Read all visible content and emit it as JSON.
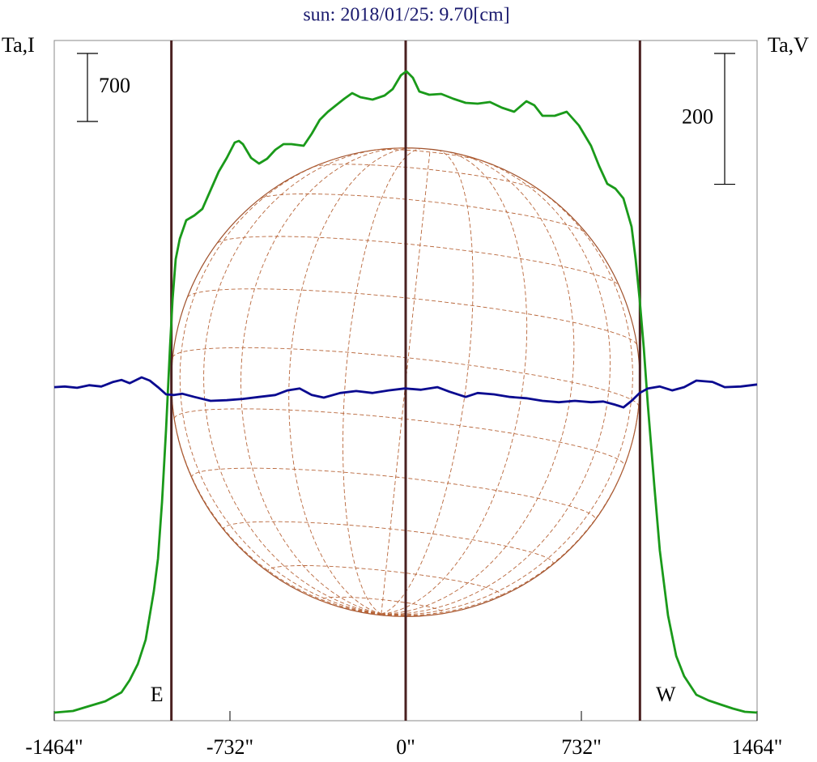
{
  "chart_data": {
    "type": "line",
    "title": "sun: 2018/01/25: 9.70[cm]",
    "y_label": "Ta,I",
    "y2_label": "Ta,V",
    "xlim": [
      -1464,
      1464
    ],
    "xticks": [
      {
        "value": -1464,
        "label": "-1464\""
      },
      {
        "value": -732,
        "label": "-732\""
      },
      {
        "value": 0,
        "label": "0\""
      },
      {
        "value": 732,
        "label": "732\""
      },
      {
        "value": 1464,
        "label": "1464\""
      }
    ],
    "ylim": [
      0,
      7000
    ],
    "y2lim": [
      -520,
      520
    ],
    "y_scale_bar": 700,
    "y2_scale_bar": 200,
    "markers": [
      {
        "x": -976,
        "label": "E"
      },
      {
        "x": 0
      },
      {
        "x": 976,
        "label": "W"
      }
    ],
    "series": [
      {
        "color": "#1a9a1a",
        "axis": "y",
        "x": [
          -1464,
          -1386,
          -1319,
          -1251,
          -1184,
          -1150,
          -1116,
          -1083,
          -1049,
          -1032,
          -1015,
          -998,
          -982,
          -971,
          -958,
          -941,
          -914,
          -880,
          -847,
          -813,
          -779,
          -745,
          -712,
          -695,
          -678,
          -644,
          -611,
          -577,
          -543,
          -509,
          -476,
          -425,
          -391,
          -358,
          -324,
          -290,
          -256,
          -223,
          -189,
          -138,
          -88,
          -54,
          -20,
          3,
          30,
          57,
          98,
          148,
          199,
          250,
          300,
          351,
          401,
          452,
          503,
          536,
          570,
          621,
          671,
          722,
          772,
          806,
          840,
          874,
          907,
          941,
          958,
          975,
          992,
          1009,
          1036,
          1059,
          1093,
          1127,
          1160,
          1211,
          1262,
          1312,
          1363,
          1413,
          1464
        ],
        "values": [
          83,
          100,
          150,
          200,
          292,
          417,
          583,
          833,
          1333,
          1667,
          2250,
          3000,
          3833,
          4333,
          4750,
          4958,
          5150,
          5200,
          5267,
          5458,
          5650,
          5792,
          5950,
          5967,
          5933,
          5792,
          5733,
          5783,
          5875,
          5933,
          5933,
          5917,
          6042,
          6183,
          6267,
          6333,
          6400,
          6458,
          6417,
          6392,
          6433,
          6500,
          6642,
          6683,
          6617,
          6475,
          6442,
          6450,
          6400,
          6358,
          6350,
          6367,
          6308,
          6267,
          6375,
          6333,
          6225,
          6225,
          6267,
          6125,
          5917,
          5708,
          5525,
          5475,
          5375,
          5083,
          4750,
          4333,
          3833,
          3250,
          2417,
          1750,
          1083,
          667,
          458,
          267,
          208,
          167,
          125,
          92,
          83
        ]
      },
      {
        "color": "#0a0a90",
        "axis": "y2",
        "x": [
          -1464,
          -1420,
          -1369,
          -1319,
          -1268,
          -1218,
          -1184,
          -1150,
          -1100,
          -1066,
          -1032,
          -998,
          -965,
          -931,
          -880,
          -813,
          -745,
          -678,
          -611,
          -543,
          -492,
          -442,
          -391,
          -341,
          -273,
          -206,
          -138,
          -71,
          -3,
          64,
          132,
          182,
          250,
          300,
          368,
          435,
          503,
          570,
          638,
          705,
          772,
          823,
          874,
          907,
          941,
          975,
          1009,
          1059,
          1110,
          1160,
          1211,
          1278,
          1329,
          1396,
          1464
        ],
        "values": [
          -10,
          -9,
          -11,
          -7,
          -9,
          -2,
          1,
          -4,
          5,
          0,
          -10,
          -21,
          -22,
          -20,
          -25,
          -31,
          -30,
          -28,
          -25,
          -22,
          -15,
          -12,
          -22,
          -26,
          -19,
          -16,
          -19,
          -15,
          -12,
          -14,
          -10,
          -17,
          -25,
          -19,
          -21,
          -25,
          -27,
          -31,
          -33,
          -31,
          -33,
          -32,
          -37,
          -41,
          -31,
          -19,
          -12,
          -9,
          -15,
          -10,
          0,
          -2,
          -10,
          -9,
          -6
        ]
      }
    ]
  }
}
